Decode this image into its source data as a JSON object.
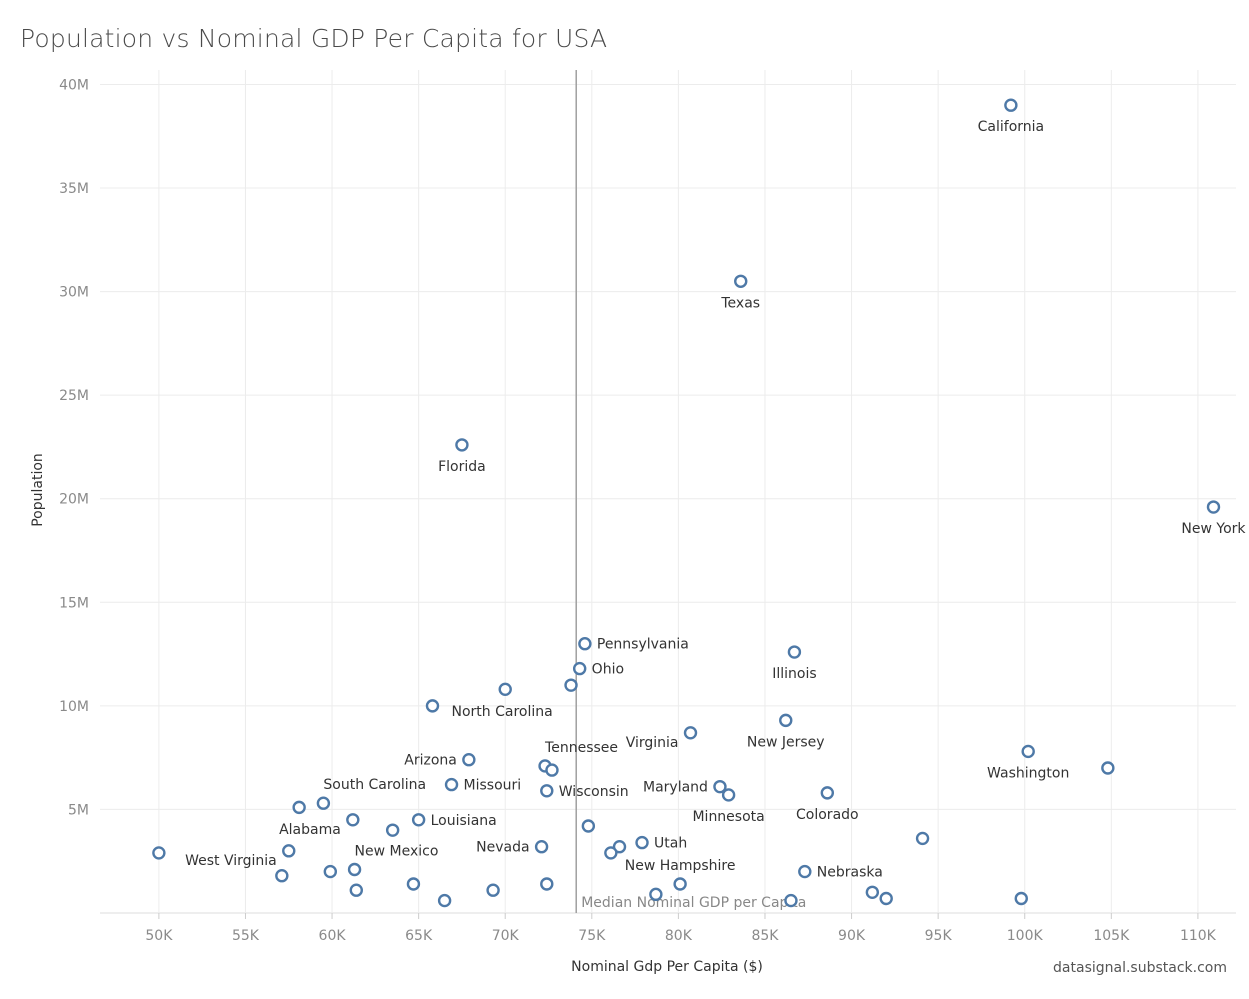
{
  "chart_data": {
    "type": "scatter",
    "title": "Population vs Nominal GDP Per Capita for USA",
    "xlabel": "Nominal Gdp Per Capita ($)",
    "ylabel": "Population",
    "xlim": [
      46600,
      112200
    ],
    "ylim": [
      0,
      40700000
    ],
    "x_ticks": [
      {
        "value": 50000,
        "label": "50K"
      },
      {
        "value": 55000,
        "label": "55K"
      },
      {
        "value": 60000,
        "label": "60K"
      },
      {
        "value": 65000,
        "label": "65K"
      },
      {
        "value": 70000,
        "label": "70K"
      },
      {
        "value": 75000,
        "label": "75K"
      },
      {
        "value": 80000,
        "label": "80K"
      },
      {
        "value": 85000,
        "label": "85K"
      },
      {
        "value": 90000,
        "label": "90K"
      },
      {
        "value": 95000,
        "label": "95K"
      },
      {
        "value": 100000,
        "label": "100K"
      },
      {
        "value": 105000,
        "label": "105K"
      },
      {
        "value": 110000,
        "label": "110K"
      }
    ],
    "y_ticks": [
      {
        "value": 5000000,
        "label": "5M"
      },
      {
        "value": 10000000,
        "label": "10M"
      },
      {
        "value": 15000000,
        "label": "15M"
      },
      {
        "value": 20000000,
        "label": "20M"
      },
      {
        "value": 25000000,
        "label": "25M"
      },
      {
        "value": 30000000,
        "label": "30M"
      },
      {
        "value": 35000000,
        "label": "35M"
      },
      {
        "value": 40000000,
        "label": "40M"
      }
    ],
    "grid": true,
    "reference_line": {
      "x": 74100,
      "label": "Median Nominal GDP per Capita"
    },
    "points": [
      {
        "x": 99200,
        "y": 39000000,
        "label": "California",
        "pos": "below"
      },
      {
        "x": 83600,
        "y": 30500000,
        "label": "Texas",
        "pos": "below"
      },
      {
        "x": 67500,
        "y": 22600000,
        "label": "Florida",
        "pos": "below"
      },
      {
        "x": 110900,
        "y": 19600000,
        "label": "New York",
        "pos": "below"
      },
      {
        "x": 74600,
        "y": 13000000,
        "label": "Pennsylvania",
        "pos": "right"
      },
      {
        "x": 86700,
        "y": 12600000,
        "label": "Illinois",
        "pos": "below"
      },
      {
        "x": 74300,
        "y": 11800000,
        "label": "Ohio",
        "pos": "right"
      },
      {
        "x": 70000,
        "y": 10800000,
        "label": "",
        "pos": ""
      },
      {
        "x": 73800,
        "y": 11000000,
        "label": "",
        "pos": ""
      },
      {
        "x": 65800,
        "y": 10000000,
        "label": "North Carolina",
        "pos": "below-right"
      },
      {
        "x": 86200,
        "y": 9300000,
        "label": "New Jersey",
        "pos": "below"
      },
      {
        "x": 80700,
        "y": 8700000,
        "label": "Virginia",
        "pos": "below-left"
      },
      {
        "x": 100200,
        "y": 7800000,
        "label": "Washington",
        "pos": "below"
      },
      {
        "x": 104800,
        "y": 7000000,
        "label": "",
        "pos": ""
      },
      {
        "x": 72300,
        "y": 7100000,
        "label": "Tennessee",
        "pos": "above-right"
      },
      {
        "x": 72700,
        "y": 6900000,
        "label": "",
        "pos": ""
      },
      {
        "x": 67900,
        "y": 7400000,
        "label": "Arizona",
        "pos": "left"
      },
      {
        "x": 66900,
        "y": 6200000,
        "label": "Missouri",
        "pos": "right"
      },
      {
        "x": 72400,
        "y": 5900000,
        "label": "Wisconsin",
        "pos": "right"
      },
      {
        "x": 82400,
        "y": 6100000,
        "label": "Maryland",
        "pos": "left"
      },
      {
        "x": 82900,
        "y": 5700000,
        "label": "Minnesota",
        "pos": "below"
      },
      {
        "x": 88600,
        "y": 5800000,
        "label": "Colorado",
        "pos": "below"
      },
      {
        "x": 59500,
        "y": 5300000,
        "label": "South Carolina",
        "pos": "above-right"
      },
      {
        "x": 58100,
        "y": 5100000,
        "label": "",
        "pos": ""
      },
      {
        "x": 61200,
        "y": 4500000,
        "label": "Alabama",
        "pos": "below-left"
      },
      {
        "x": 65000,
        "y": 4500000,
        "label": "Louisiana",
        "pos": "right"
      },
      {
        "x": 63500,
        "y": 4000000,
        "label": "",
        "pos": ""
      },
      {
        "x": 74800,
        "y": 4200000,
        "label": "",
        "pos": ""
      },
      {
        "x": 94100,
        "y": 3600000,
        "label": "",
        "pos": ""
      },
      {
        "x": 77900,
        "y": 3400000,
        "label": "Utah",
        "pos": "right"
      },
      {
        "x": 72100,
        "y": 3200000,
        "label": "Nevada",
        "pos": "left"
      },
      {
        "x": 76600,
        "y": 3200000,
        "label": "",
        "pos": ""
      },
      {
        "x": 76100,
        "y": 2900000,
        "label": "",
        "pos": ""
      },
      {
        "x": 50000,
        "y": 2900000,
        "label": "",
        "pos": ""
      },
      {
        "x": 57500,
        "y": 3000000,
        "label": "West Virginia",
        "pos": "below-left"
      },
      {
        "x": 61300,
        "y": 2100000,
        "label": "New Mexico",
        "pos": "above-right"
      },
      {
        "x": 80100,
        "y": 1400000,
        "label": "New Hampshire",
        "pos": "above"
      },
      {
        "x": 87300,
        "y": 2000000,
        "label": "Nebraska",
        "pos": "right"
      },
      {
        "x": 57100,
        "y": 1800000,
        "label": "",
        "pos": ""
      },
      {
        "x": 59900,
        "y": 2000000,
        "label": "",
        "pos": ""
      },
      {
        "x": 61400,
        "y": 1100000,
        "label": "",
        "pos": ""
      },
      {
        "x": 64700,
        "y": 1400000,
        "label": "",
        "pos": ""
      },
      {
        "x": 66500,
        "y": 600000,
        "label": "",
        "pos": ""
      },
      {
        "x": 69300,
        "y": 1100000,
        "label": "",
        "pos": ""
      },
      {
        "x": 72400,
        "y": 1400000,
        "label": "",
        "pos": ""
      },
      {
        "x": 78700,
        "y": 900000,
        "label": "",
        "pos": ""
      },
      {
        "x": 86500,
        "y": 600000,
        "label": "",
        "pos": ""
      },
      {
        "x": 91200,
        "y": 1000000,
        "label": "",
        "pos": ""
      },
      {
        "x": 92000,
        "y": 700000,
        "label": "",
        "pos": ""
      },
      {
        "x": 99800,
        "y": 700000,
        "label": "",
        "pos": ""
      }
    ]
  },
  "credit": "datasignal.substack.com",
  "colors": {
    "point_stroke": "#4e79a7",
    "grid": "#ececec",
    "median_line": "#a0a0a0"
  }
}
